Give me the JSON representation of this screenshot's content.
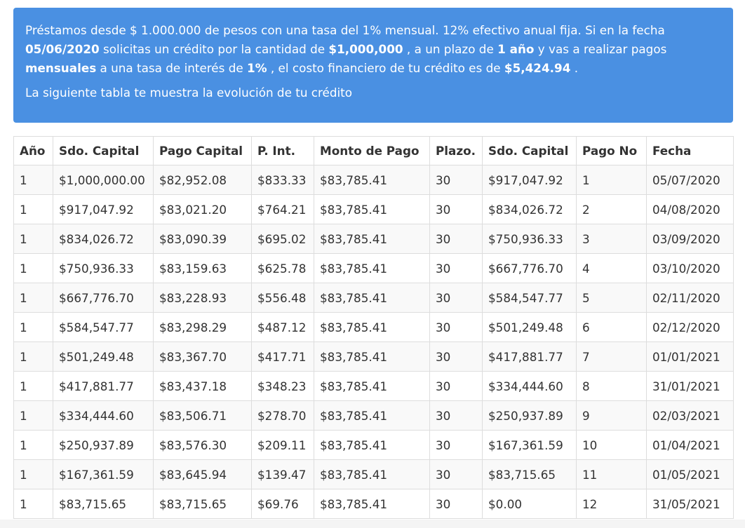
{
  "summary": {
    "t1": "Préstamos desde $ 1.000.000 de pesos con una tasa del 1% mensual. 12% efectivo anual fija. Si en la fecha ",
    "date": "05/06/2020",
    "t2": " solicitas un crédito por la cantidad de ",
    "amount": "$1,000,000",
    "t3": " , a un plazo de ",
    "term": "1 año",
    "t4": " y vas a realizar pagos ",
    "frequency": "mensuales",
    "t5": " a una tasa de interés de ",
    "rate": "1%",
    "t6": " , el costo financiero de tu crédito es de ",
    "cost": "$5,424.94",
    "t7": " .",
    "note": "La siguiente tabla te muestra la evolución de tu crédito"
  },
  "table": {
    "headers": [
      "Año",
      "Sdo. Capital",
      "Pago Capital",
      "P. Int.",
      "Monto de Pago",
      "Plazo.",
      "Sdo. Capital",
      "Pago No",
      "Fecha"
    ],
    "rows": [
      [
        "1",
        "$1,000,000.00",
        "$82,952.08",
        "$833.33",
        "$83,785.41",
        "30",
        "$917,047.92",
        "1",
        "05/07/2020"
      ],
      [
        "1",
        "$917,047.92",
        "$83,021.20",
        "$764.21",
        "$83,785.41",
        "30",
        "$834,026.72",
        "2",
        "04/08/2020"
      ],
      [
        "1",
        "$834,026.72",
        "$83,090.39",
        "$695.02",
        "$83,785.41",
        "30",
        "$750,936.33",
        "3",
        "03/09/2020"
      ],
      [
        "1",
        "$750,936.33",
        "$83,159.63",
        "$625.78",
        "$83,785.41",
        "30",
        "$667,776.70",
        "4",
        "03/10/2020"
      ],
      [
        "1",
        "$667,776.70",
        "$83,228.93",
        "$556.48",
        "$83,785.41",
        "30",
        "$584,547.77",
        "5",
        "02/11/2020"
      ],
      [
        "1",
        "$584,547.77",
        "$83,298.29",
        "$487.12",
        "$83,785.41",
        "30",
        "$501,249.48",
        "6",
        "02/12/2020"
      ],
      [
        "1",
        "$501,249.48",
        "$83,367.70",
        "$417.71",
        "$83,785.41",
        "30",
        "$417,881.77",
        "7",
        "01/01/2021"
      ],
      [
        "1",
        "$417,881.77",
        "$83,437.18",
        "$348.23",
        "$83,785.41",
        "30",
        "$334,444.60",
        "8",
        "31/01/2021"
      ],
      [
        "1",
        "$334,444.60",
        "$83,506.71",
        "$278.70",
        "$83,785.41",
        "30",
        "$250,937.89",
        "9",
        "02/03/2021"
      ],
      [
        "1",
        "$250,937.89",
        "$83,576.30",
        "$209.11",
        "$83,785.41",
        "30",
        "$167,361.59",
        "10",
        "01/04/2021"
      ],
      [
        "1",
        "$167,361.59",
        "$83,645.94",
        "$139.47",
        "$83,785.41",
        "30",
        "$83,715.65",
        "11",
        "01/05/2021"
      ],
      [
        "1",
        "$83,715.65",
        "$83,715.65",
        "$69.76",
        "$83,785.41",
        "30",
        "$0.00",
        "12",
        "31/05/2021"
      ]
    ]
  },
  "colors": {
    "info_background": "#4a90e2",
    "table_border": "#dddddd",
    "row_stripe": "#f9f9f9"
  }
}
